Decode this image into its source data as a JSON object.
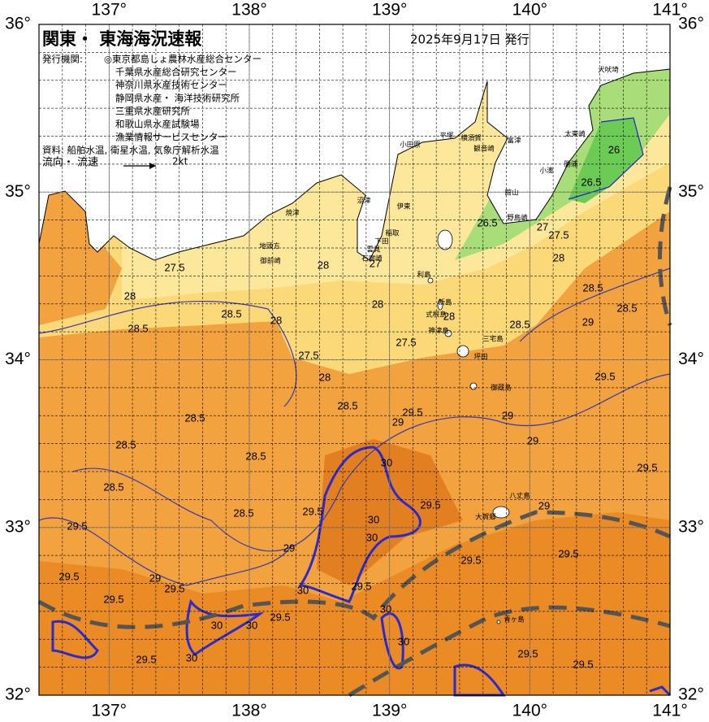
{
  "header": {
    "title": "関東・ 東海海況速報",
    "date": "2025年9月17日 発行"
  },
  "agencies": {
    "label": "発行機関:",
    "items": [
      "◎東京都島しょ農林水産総合センター",
      "千葉県水産総合研究センター",
      "神奈川県水産技術センター",
      "静岡県水産・ 海洋技術研究所",
      "三重県水産研究所",
      "和歌山県水産試験場",
      "漁業情報サービスセンター"
    ]
  },
  "sources": "資料: 船舶水温, 衛星水温, 気象庁解析水温",
  "legend": {
    "label": "流向・ 流速",
    "speed": "2kt"
  },
  "map": {
    "lonlim": [
      136.5,
      141
    ],
    "latlim": [
      32,
      36
    ],
    "lon_ticks": [
      {
        "value": 137,
        "label": "137°"
      },
      {
        "value": 138,
        "label": "138°"
      },
      {
        "value": 139,
        "label": "139°"
      },
      {
        "value": 140,
        "label": "140°"
      },
      {
        "value": 141,
        "label": "141°"
      }
    ],
    "lat_ticks": [
      {
        "value": 32,
        "label": "32°"
      },
      {
        "value": 33,
        "label": "33°"
      },
      {
        "value": 34,
        "label": "34°"
      },
      {
        "value": 35,
        "label": "35°"
      },
      {
        "value": 36,
        "label": "36°"
      }
    ]
  },
  "place_names": [
    "犬吠埼",
    "太東崎",
    "勝浦",
    "小湊",
    "野島崎",
    "館山",
    "富津",
    "横須賀",
    "観音崎",
    "平塚",
    "小田原",
    "伊東",
    "稲取",
    "下田",
    "雲見",
    "石廊崎",
    "沼津",
    "焼津",
    "地頭方",
    "御前崎",
    "利島",
    "新島",
    "式根島",
    "神津島",
    "三宅島",
    "坪田",
    "御蔵島",
    "八丈島",
    "大賀郷",
    "青ヶ島"
  ],
  "contour_labels": [
    "27.5",
    "28",
    "28.5",
    "28.5",
    "28",
    "27.5",
    "28",
    "28.5",
    "28",
    "28",
    "27.5",
    "27",
    "28",
    "28.5",
    "28",
    "27.5",
    "27",
    "26.5",
    "26.5",
    "26",
    "28.5",
    "28.5",
    "29",
    "29.5",
    "29",
    "29",
    "29.5",
    "29.5",
    "29",
    "28.5",
    "28.5",
    "28.5",
    "28.5",
    "28.5",
    "29.5",
    "29.5",
    "30",
    "30",
    "30",
    "29",
    "29",
    "29.5",
    "29.5",
    "29.5",
    "29.5",
    "29.5",
    "30",
    "29.5",
    "30",
    "30",
    "30",
    "30",
    "30",
    "29.5",
    "29.5",
    "29.5",
    "29",
    "29.5",
    "29.5"
  ]
}
